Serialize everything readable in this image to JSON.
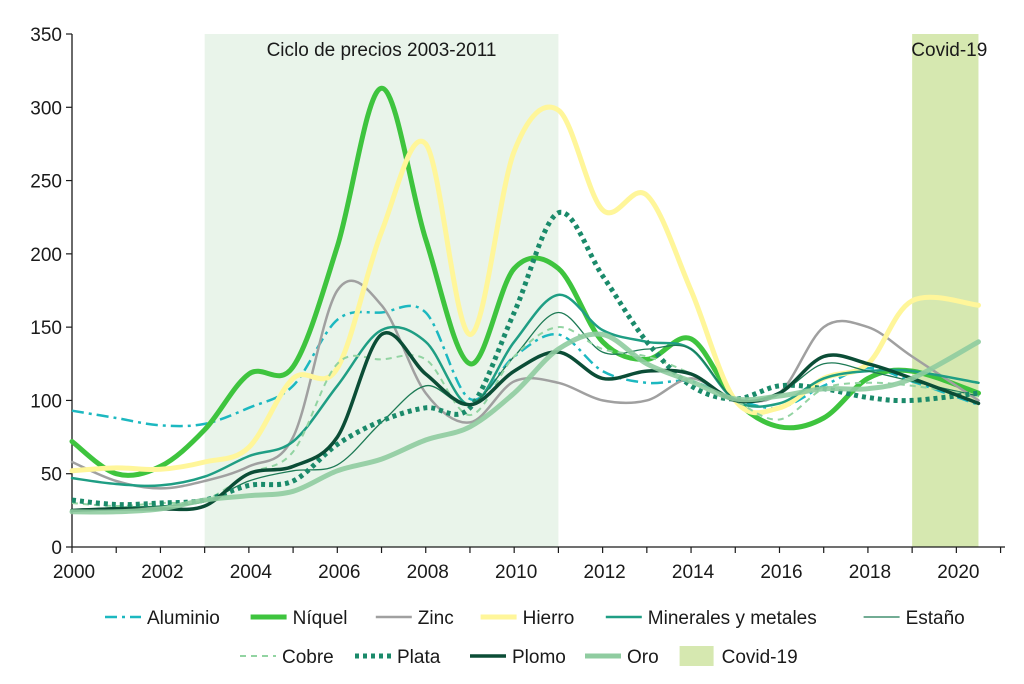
{
  "chart_data": {
    "type": "line",
    "title": "",
    "xlabel": "",
    "ylabel": "",
    "xlim": [
      2000,
      2021.1
    ],
    "ylim": [
      0,
      350
    ],
    "yticks": [
      0,
      50,
      100,
      150,
      200,
      250,
      300,
      350
    ],
    "xticks": [
      2000,
      2002,
      2004,
      2006,
      2008,
      2010,
      2012,
      2014,
      2016,
      2018,
      2020
    ],
    "grid": false,
    "legend_position": "bottom",
    "bands": [
      {
        "id": "ciclo",
        "label": "Ciclo de precios 2003-2011",
        "start": 2003,
        "end": 2011,
        "color": "#e9f4ea"
      },
      {
        "id": "covid",
        "label": "Covid-19",
        "start": 2019,
        "end": 2020.5,
        "color": "#d6e8b0"
      }
    ],
    "series": [
      {
        "name": "Aluminio",
        "color": "#1cb8c0",
        "width": 2.5,
        "dash": "12 5 3 5",
        "opacity": 1,
        "points": [
          [
            2000,
            93
          ],
          [
            2001,
            88
          ],
          [
            2002,
            83
          ],
          [
            2003,
            84
          ],
          [
            2004,
            95
          ],
          [
            2005,
            110
          ],
          [
            2006,
            155
          ],
          [
            2007,
            160
          ],
          [
            2008,
            160
          ],
          [
            2009,
            101
          ],
          [
            2010,
            130
          ],
          [
            2011,
            145
          ],
          [
            2012,
            120
          ],
          [
            2013,
            112
          ],
          [
            2014,
            113
          ],
          [
            2015,
            101
          ],
          [
            2016,
            95
          ],
          [
            2017,
            110
          ],
          [
            2018,
            122
          ],
          [
            2019,
            113
          ],
          [
            2020.5,
            97
          ]
        ]
      },
      {
        "name": "Níquel",
        "color": "#3ec43e",
        "width": 5,
        "dash": "",
        "opacity": 1,
        "points": [
          [
            2000,
            72
          ],
          [
            2001,
            50
          ],
          [
            2002,
            55
          ],
          [
            2003,
            80
          ],
          [
            2004,
            118
          ],
          [
            2005,
            123
          ],
          [
            2006,
            205
          ],
          [
            2007,
            313
          ],
          [
            2008,
            210
          ],
          [
            2009,
            125
          ],
          [
            2010,
            190
          ],
          [
            2011,
            190
          ],
          [
            2012,
            140
          ],
          [
            2013,
            128
          ],
          [
            2014,
            142
          ],
          [
            2015,
            100
          ],
          [
            2016,
            82
          ],
          [
            2017,
            88
          ],
          [
            2018,
            115
          ],
          [
            2019,
            120
          ],
          [
            2020.5,
            105
          ]
        ]
      },
      {
        "name": "Zinc",
        "color": "#a0a0a0",
        "width": 2.5,
        "dash": "",
        "opacity": 1,
        "points": [
          [
            2000,
            58
          ],
          [
            2001,
            45
          ],
          [
            2002,
            40
          ],
          [
            2003,
            45
          ],
          [
            2004,
            55
          ],
          [
            2005,
            75
          ],
          [
            2006,
            175
          ],
          [
            2007,
            165
          ],
          [
            2008,
            105
          ],
          [
            2009,
            85
          ],
          [
            2010,
            113
          ],
          [
            2011,
            112
          ],
          [
            2012,
            100
          ],
          [
            2013,
            100
          ],
          [
            2014,
            115
          ],
          [
            2015,
            101
          ],
          [
            2016,
            105
          ],
          [
            2017,
            150
          ],
          [
            2018,
            150
          ],
          [
            2019,
            130
          ],
          [
            2020.5,
            100
          ]
        ]
      },
      {
        "name": "Hierro",
        "color": "#fff69a",
        "width": 5,
        "dash": "",
        "opacity": 1,
        "points": [
          [
            2000,
            52
          ],
          [
            2001,
            54
          ],
          [
            2002,
            53
          ],
          [
            2003,
            58
          ],
          [
            2004,
            68
          ],
          [
            2005,
            115
          ],
          [
            2006,
            122
          ],
          [
            2007,
            215
          ],
          [
            2008,
            275
          ],
          [
            2009,
            145
          ],
          [
            2010,
            270
          ],
          [
            2011,
            298
          ],
          [
            2012,
            230
          ],
          [
            2013,
            240
          ],
          [
            2014,
            175
          ],
          [
            2015,
            100
          ],
          [
            2016,
            95
          ],
          [
            2017,
            115
          ],
          [
            2018,
            125
          ],
          [
            2019,
            168
          ],
          [
            2020.5,
            165
          ]
        ]
      },
      {
        "name": "Minerales y metales",
        "color": "#1f9e84",
        "width": 2.5,
        "dash": "",
        "opacity": 1,
        "points": [
          [
            2000,
            47
          ],
          [
            2001,
            43
          ],
          [
            2002,
            42
          ],
          [
            2003,
            48
          ],
          [
            2004,
            62
          ],
          [
            2005,
            72
          ],
          [
            2006,
            110
          ],
          [
            2007,
            148
          ],
          [
            2008,
            140
          ],
          [
            2009,
            97
          ],
          [
            2010,
            140
          ],
          [
            2011,
            172
          ],
          [
            2012,
            148
          ],
          [
            2013,
            140
          ],
          [
            2014,
            135
          ],
          [
            2015,
            100
          ],
          [
            2016,
            98
          ],
          [
            2017,
            115
          ],
          [
            2018,
            120
          ],
          [
            2019,
            120
          ],
          [
            2020.5,
            112
          ]
        ]
      },
      {
        "name": "Estaño",
        "color": "#1d7a55",
        "width": 1.3,
        "dash": "",
        "opacity": 1,
        "points": [
          [
            2000,
            25
          ],
          [
            2001,
            27
          ],
          [
            2002,
            28
          ],
          [
            2003,
            31
          ],
          [
            2004,
            45
          ],
          [
            2005,
            52
          ],
          [
            2006,
            56
          ],
          [
            2007,
            85
          ],
          [
            2008,
            110
          ],
          [
            2009,
            97
          ],
          [
            2010,
            130
          ],
          [
            2011,
            160
          ],
          [
            2012,
            133
          ],
          [
            2013,
            135
          ],
          [
            2014,
            135
          ],
          [
            2015,
            101
          ],
          [
            2016,
            105
          ],
          [
            2017,
            125
          ],
          [
            2018,
            120
          ],
          [
            2019,
            113
          ],
          [
            2020.5,
            103
          ]
        ]
      },
      {
        "name": "Cobre",
        "color": "#92d4a2",
        "width": 2,
        "dash": "6 5",
        "opacity": 1,
        "points": [
          [
            2000,
            30
          ],
          [
            2001,
            28
          ],
          [
            2002,
            30
          ],
          [
            2003,
            32
          ],
          [
            2004,
            50
          ],
          [
            2005,
            65
          ],
          [
            2006,
            125
          ],
          [
            2007,
            128
          ],
          [
            2008,
            128
          ],
          [
            2009,
            90
          ],
          [
            2010,
            130
          ],
          [
            2011,
            150
          ],
          [
            2012,
            135
          ],
          [
            2013,
            130
          ],
          [
            2014,
            118
          ],
          [
            2015,
            100
          ],
          [
            2016,
            87
          ],
          [
            2017,
            108
          ],
          [
            2018,
            112
          ],
          [
            2019,
            110
          ],
          [
            2020.5,
            103
          ]
        ]
      },
      {
        "name": "Plata",
        "color": "#1a8a6a",
        "width": 5,
        "dash": "4 4",
        "opacity": 1,
        "points": [
          [
            2000,
            32
          ],
          [
            2001,
            29
          ],
          [
            2002,
            30
          ],
          [
            2003,
            32
          ],
          [
            2004,
            42
          ],
          [
            2005,
            45
          ],
          [
            2006,
            70
          ],
          [
            2007,
            86
          ],
          [
            2008,
            95
          ],
          [
            2009,
            95
          ],
          [
            2010,
            160
          ],
          [
            2011,
            228
          ],
          [
            2012,
            185
          ],
          [
            2013,
            140
          ],
          [
            2014,
            110
          ],
          [
            2015,
            101
          ],
          [
            2016,
            110
          ],
          [
            2017,
            108
          ],
          [
            2018,
            102
          ],
          [
            2019,
            100
          ],
          [
            2020.5,
            105
          ]
        ]
      },
      {
        "name": "Plomo",
        "color": "#0b4d36",
        "width": 3.5,
        "dash": "",
        "opacity": 1,
        "points": [
          [
            2000,
            25
          ],
          [
            2001,
            26
          ],
          [
            2002,
            26
          ],
          [
            2003,
            28
          ],
          [
            2004,
            50
          ],
          [
            2005,
            55
          ],
          [
            2006,
            75
          ],
          [
            2007,
            145
          ],
          [
            2008,
            118
          ],
          [
            2009,
            97
          ],
          [
            2010,
            120
          ],
          [
            2011,
            133
          ],
          [
            2012,
            115
          ],
          [
            2013,
            120
          ],
          [
            2014,
            118
          ],
          [
            2015,
            100
          ],
          [
            2016,
            105
          ],
          [
            2017,
            130
          ],
          [
            2018,
            125
          ],
          [
            2019,
            115
          ],
          [
            2020.5,
            98
          ]
        ]
      },
      {
        "name": "Oro",
        "color": "#8fcca0",
        "width": 5,
        "dash": "",
        "opacity": 0.9,
        "points": [
          [
            2000,
            24
          ],
          [
            2001,
            24
          ],
          [
            2002,
            26
          ],
          [
            2003,
            32
          ],
          [
            2004,
            35
          ],
          [
            2005,
            38
          ],
          [
            2006,
            52
          ],
          [
            2007,
            60
          ],
          [
            2008,
            73
          ],
          [
            2009,
            82
          ],
          [
            2010,
            105
          ],
          [
            2011,
            135
          ],
          [
            2012,
            145
          ],
          [
            2013,
            125
          ],
          [
            2014,
            113
          ],
          [
            2015,
            101
          ],
          [
            2016,
            103
          ],
          [
            2017,
            108
          ],
          [
            2018,
            108
          ],
          [
            2019,
            115
          ],
          [
            2020.5,
            140
          ]
        ]
      }
    ]
  },
  "legend": {
    "rows": [
      [
        {
          "label": "Aluminio",
          "color": "#1cb8c0",
          "width": 2.5,
          "dash": "12 5 3 5",
          "kind": "line"
        },
        {
          "label": "Níquel",
          "color": "#3ec43e",
          "width": 5,
          "dash": "",
          "kind": "line"
        },
        {
          "label": "Zinc",
          "color": "#a0a0a0",
          "width": 2.5,
          "dash": "",
          "kind": "line"
        },
        {
          "label": "Hierro",
          "color": "#fff69a",
          "width": 5,
          "dash": "",
          "kind": "line"
        },
        {
          "label": "Minerales y metales",
          "color": "#1f9e84",
          "width": 2.5,
          "dash": "",
          "kind": "line"
        },
        {
          "label": "Estaño",
          "color": "#1d7a55",
          "width": 1.3,
          "dash": "",
          "kind": "line"
        }
      ],
      [
        {
          "label": "Cobre",
          "color": "#92d4a2",
          "width": 2,
          "dash": "6 5",
          "kind": "line"
        },
        {
          "label": "Plata",
          "color": "#1a8a6a",
          "width": 5,
          "dash": "4 4",
          "kind": "line"
        },
        {
          "label": "Plomo",
          "color": "#0b4d36",
          "width": 3.5,
          "dash": "",
          "kind": "line"
        },
        {
          "label": "Oro",
          "color": "#8fcca0",
          "width": 5,
          "dash": "",
          "kind": "line"
        },
        {
          "label": "Covid-19",
          "color": "#d6e8b0",
          "kind": "box"
        }
      ]
    ]
  }
}
